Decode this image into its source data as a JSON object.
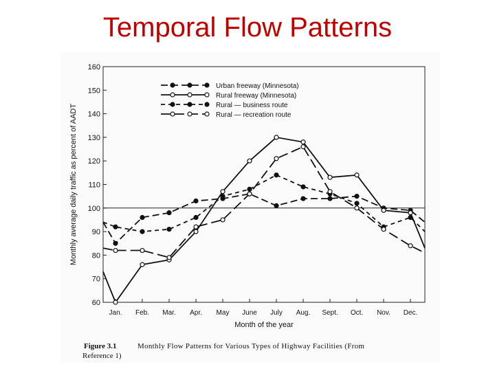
{
  "slide": {
    "title": "Temporal Flow Patterns"
  },
  "caption": {
    "figure_label": "Figure 3.1",
    "text": "Monthly Flow Patterns for Various Types of Highway Facilities (From",
    "text_cont": "Reference 1)"
  },
  "chart_data": {
    "type": "line",
    "title": "",
    "xlabel": "Month of the year",
    "ylabel": "Monthly average daily traffic as percent of AADT",
    "ylim": [
      60,
      160
    ],
    "yticks": [
      60,
      70,
      80,
      90,
      100,
      110,
      120,
      130,
      140,
      150,
      160
    ],
    "categories": [
      "Jan.",
      "Feb.",
      "Mar.",
      "Apr.",
      "May",
      "June",
      "July",
      "Aug.",
      "Sept.",
      "Oct.",
      "Nov.",
      "Dec."
    ],
    "reference_line": 100,
    "legend_position": "top-center",
    "series": [
      {
        "name": "Urban freeway (Minnesota)",
        "style": "dash-filled",
        "edge_left": 94,
        "values": [
          85,
          96,
          98,
          103,
          104,
          106,
          101,
          104,
          104,
          105,
          100,
          99
        ],
        "edge_right": 94
      },
      {
        "name": "Rural freeway (Minnesota)",
        "style": "solid-open",
        "edge_left": 73,
        "values": [
          60,
          76,
          78,
          90,
          107,
          120,
          130,
          128,
          113,
          114,
          99,
          98
        ],
        "edge_right": 83
      },
      {
        "name": "Rural — business route",
        "style": "shortdash-filled",
        "edge_left": 94,
        "values": [
          92,
          90,
          91,
          96,
          105,
          108,
          114,
          109,
          106,
          102,
          92,
          96
        ],
        "edge_right": 90
      },
      {
        "name": "Rural — recreation route",
        "style": "longdash-open",
        "edge_left": 83,
        "values": [
          82,
          82,
          79,
          92,
          95,
          106,
          121,
          126,
          107,
          100,
          91,
          84
        ],
        "edge_right": 81
      }
    ]
  }
}
